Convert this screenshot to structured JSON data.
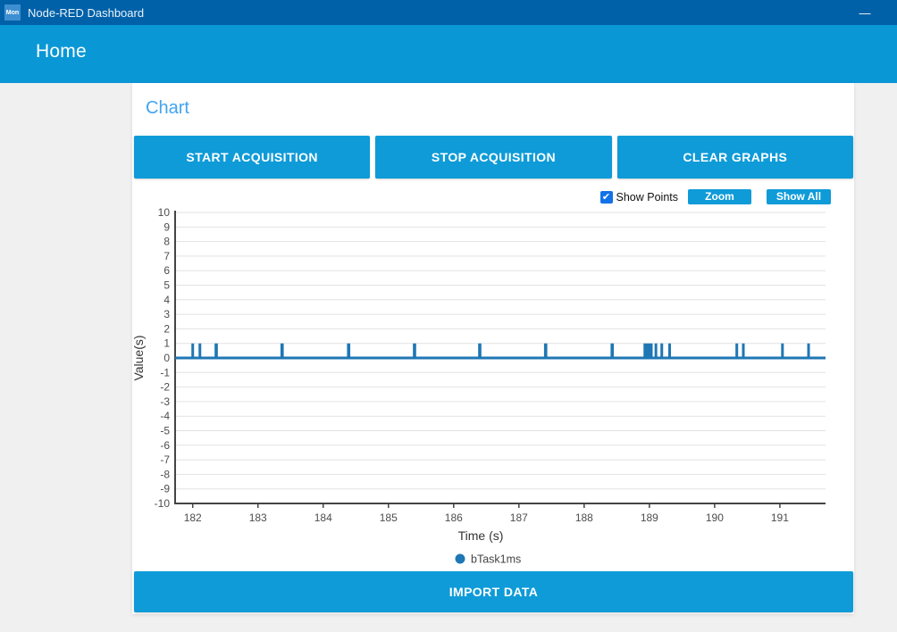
{
  "titlebar": {
    "app_title": "Node-RED Dashboard",
    "icon_text": "Mon",
    "minimize_label": "—"
  },
  "header": {
    "title": "Home"
  },
  "panel": {
    "title": "Chart",
    "buttons": {
      "start": "START ACQUISITION",
      "stop": "STOP ACQUISITION",
      "clear": "CLEAR GRAPHS",
      "import": "IMPORT DATA"
    },
    "controls": {
      "show_points_label": "Show Points",
      "show_points_checked": true,
      "check_glyph": "✔",
      "zoom_label": "Zoom",
      "show_all_label": "Show All"
    }
  },
  "colors": {
    "titlebar_bg": "#0061a8",
    "header_bg": "#0a97d5",
    "button_bg": "#0e9bd8",
    "panel_title": "#41a4f0",
    "series_blue": "#1f77b4",
    "grid_line": "#e2e2e2",
    "axis_line": "#444444"
  },
  "chart_data": {
    "type": "line",
    "title": "",
    "xlabel": "Time (s)",
    "ylabel": "Value(s)",
    "xlim": [
      181.73,
      191.7
    ],
    "ylim": [
      -10,
      10
    ],
    "x_ticks": [
      182,
      183,
      184,
      185,
      186,
      187,
      188,
      189,
      190,
      191
    ],
    "y_tick_step": 1,
    "grid": "horizontal",
    "legend_position": "bottom",
    "series": [
      {
        "name": "bTask1ms",
        "color": "#1f77b4",
        "baseline_value": 0,
        "pulse_value": 1,
        "pulses": [
          {
            "t": 182.0,
            "w": 0.04
          },
          {
            "t": 182.11,
            "w": 0.04
          },
          {
            "t": 182.36,
            "w": 0.05
          },
          {
            "t": 183.37,
            "w": 0.05
          },
          {
            "t": 184.39,
            "w": 0.05
          },
          {
            "t": 185.4,
            "w": 0.05
          },
          {
            "t": 186.4,
            "w": 0.05
          },
          {
            "t": 187.41,
            "w": 0.05
          },
          {
            "t": 188.43,
            "w": 0.05
          },
          {
            "t": 188.98,
            "w": 0.14
          },
          {
            "t": 189.1,
            "w": 0.04
          },
          {
            "t": 189.19,
            "w": 0.04
          },
          {
            "t": 189.31,
            "w": 0.04
          },
          {
            "t": 190.34,
            "w": 0.04
          },
          {
            "t": 190.44,
            "w": 0.04
          },
          {
            "t": 191.04,
            "w": 0.04
          },
          {
            "t": 191.44,
            "w": 0.04
          }
        ]
      }
    ]
  }
}
